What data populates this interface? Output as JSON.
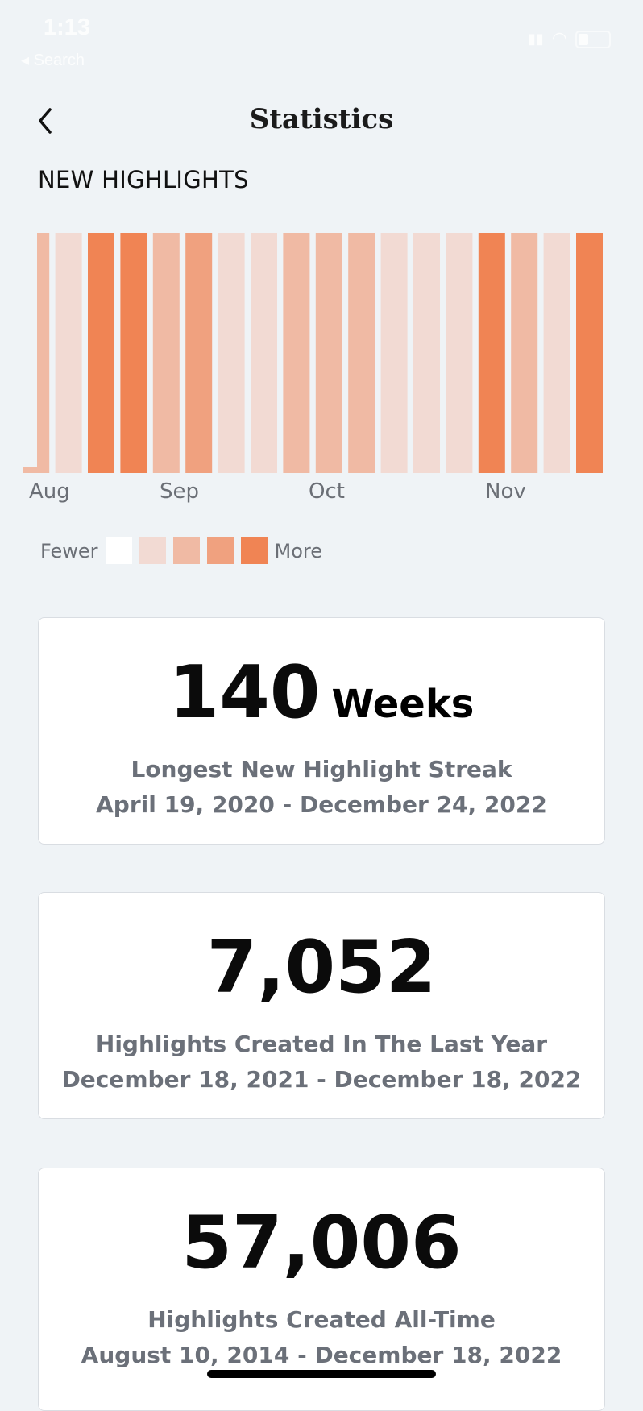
{
  "status_bar": {
    "time": "1:13",
    "back_app": "◂ Search"
  },
  "header": {
    "title": "Statistics",
    "back_icon": "chevron-left-icon"
  },
  "section_title": "NEW HIGHLIGHTS",
  "colors": {
    "level0": "#ffffff",
    "level1": "#f2dad3",
    "level2": "#f0baa4",
    "level3": "#f0a17f",
    "level4": "#f08454",
    "background": "#eff3f6"
  },
  "chart_data": {
    "type": "heatmap",
    "title": "",
    "x_tick_labels": [
      "Aug",
      "Sep",
      "Oct",
      "Nov"
    ],
    "levels": [
      2,
      1,
      4,
      4,
      2,
      3,
      1,
      1,
      2,
      2,
      2,
      1,
      1,
      1,
      4,
      2,
      1,
      4
    ],
    "level_range": [
      0,
      4
    ]
  },
  "legend": {
    "fewer": "Fewer",
    "more": "More"
  },
  "cards": [
    {
      "value": "140",
      "unit": "Weeks",
      "label": "Longest New Highlight Streak",
      "range": "April 19, 2020 - December 24, 2022"
    },
    {
      "value": "7,052",
      "label": "Highlights Created In The Last Year",
      "range": "December 18, 2021 - December 18, 2022"
    },
    {
      "value": "57,006",
      "label": "Highlights Created All-Time",
      "range": "August 10, 2014 - December 18, 2022"
    }
  ]
}
